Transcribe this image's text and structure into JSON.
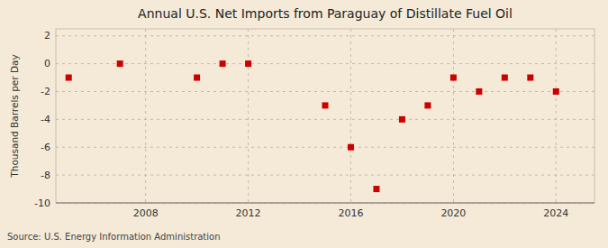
{
  "chart_data": {
    "type": "scatter",
    "title": "Annual U.S. Net Imports from Paraguay of Distillate Fuel Oil",
    "ylabel": "Thousand Barrels per Day",
    "source": "Source: U.S. Energy Information Administration",
    "x": [
      2005,
      2007,
      2010,
      2011,
      2012,
      2015,
      2016,
      2017,
      2018,
      2019,
      2020,
      2021,
      2022,
      2023,
      2024
    ],
    "values": [
      -1.0,
      0.0,
      -1.0,
      0.0,
      0.0,
      -3.0,
      -6.0,
      -9.0,
      -4.0,
      -3.0,
      -1.0,
      -2.0,
      -1.0,
      -1.0,
      -2.0
    ],
    "color": "#cc0000",
    "marker": "square",
    "xlim": [
      2004.5,
      2025.5
    ],
    "ylim": [
      -10,
      2.5
    ],
    "xticks": [
      2008,
      2012,
      2016,
      2020,
      2024
    ],
    "yticks": [
      2,
      0,
      -2,
      -4,
      -6,
      -8,
      -10
    ],
    "grid": true
  }
}
